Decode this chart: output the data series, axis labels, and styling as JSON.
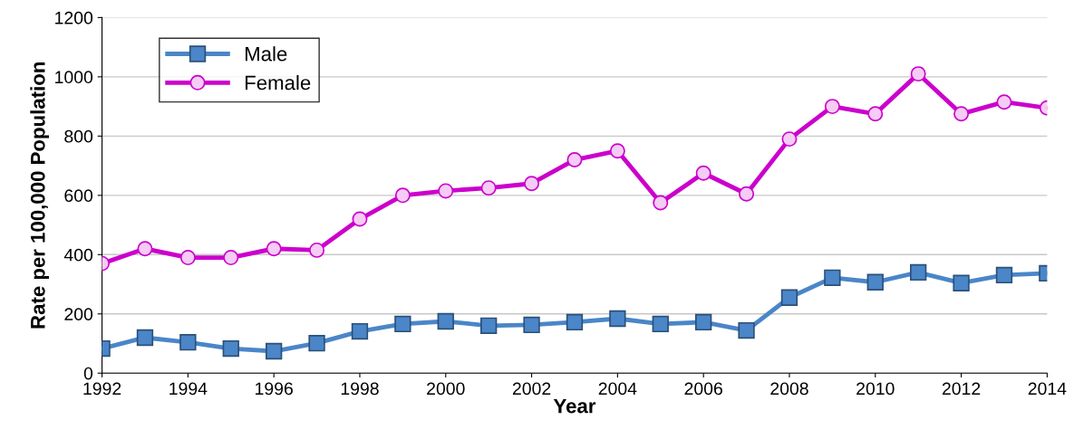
{
  "chart_data": {
    "type": "line",
    "xlabel": "Year",
    "ylabel": "Rate per 100,000 Population",
    "x": [
      1992,
      1993,
      1994,
      1995,
      1996,
      1997,
      1998,
      1999,
      2000,
      2001,
      2002,
      2003,
      2004,
      2005,
      2006,
      2007,
      2008,
      2009,
      2010,
      2011,
      2012,
      2013,
      2014
    ],
    "series": [
      {
        "name": "Male",
        "color": "#4a86c8",
        "marker": "square",
        "values": [
          83,
          120,
          104,
          83,
          74,
          101,
          141,
          166,
          175,
          160,
          163,
          172,
          184,
          166,
          172,
          144,
          255,
          322,
          307,
          340,
          304,
          331,
          337
        ]
      },
      {
        "name": "Female",
        "color": "#cc00cc",
        "marker": "circle",
        "values": [
          370,
          420,
          390,
          390,
          420,
          415,
          520,
          600,
          615,
          625,
          640,
          720,
          750,
          575,
          675,
          605,
          790,
          900,
          875,
          1010,
          875,
          915,
          895
        ]
      }
    ],
    "xlim": [
      1992,
      2014
    ],
    "xticks": [
      1992,
      1994,
      1996,
      1998,
      2000,
      2002,
      2004,
      2006,
      2008,
      2010,
      2012,
      2014
    ],
    "ylim": [
      0,
      1200
    ],
    "yticks": [
      0,
      200,
      400,
      600,
      800,
      1000,
      1200
    ],
    "grid": "y",
    "legend": "top left",
    "line_style": "solid"
  }
}
